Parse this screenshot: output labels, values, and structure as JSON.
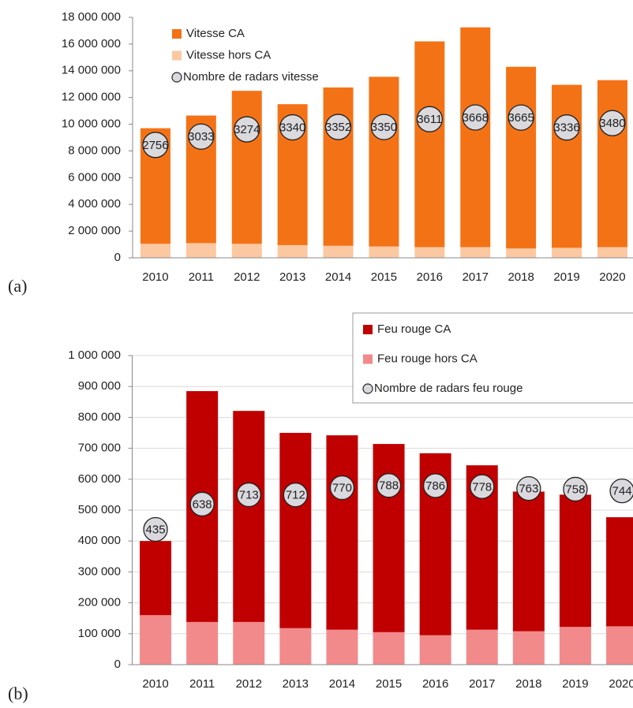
{
  "chart_data": [
    {
      "type": "bar",
      "stacked": true,
      "panel_label": "(a)",
      "categories": [
        "2010",
        "2011",
        "2012",
        "2013",
        "2014",
        "2015",
        "2016",
        "2017",
        "2018",
        "2019",
        "2020"
      ],
      "series": [
        {
          "name": "Vitesse CA",
          "color": "#f47216",
          "values": [
            8650000,
            9550000,
            11450000,
            10550000,
            11850000,
            12700000,
            15400000,
            16450000,
            13600000,
            12200000,
            12500000
          ]
        },
        {
          "name": "Vitesse hors CA",
          "color": "#fbc8a2",
          "values": [
            1050000,
            1100000,
            1050000,
            950000,
            900000,
            850000,
            800000,
            800000,
            700000,
            750000,
            800000
          ]
        },
        {
          "name": "Nombre de radars vitesse",
          "type": "scatter",
          "axis": "y2",
          "color": "#d9d9de",
          "values": [
            2756,
            3033,
            3274,
            3340,
            3352,
            3350,
            3611,
            3668,
            3665,
            3336,
            3480
          ]
        }
      ],
      "ylim": [
        0,
        18000000
      ],
      "yticks": [
        0,
        {
          "value": 2000000,
          "label": "2 000 000"
        },
        {
          "value": 4000000,
          "label": "4 000 000"
        },
        {
          "value": 6000000,
          "label": "6 000 000"
        },
        {
          "value": 8000000,
          "label": "8 000 000"
        },
        {
          "value": 10000000,
          "label": "10 000 000"
        },
        {
          "value": 12000000,
          "label": "12 000 000"
        },
        {
          "value": 14000000,
          "label": "14 000 000"
        },
        {
          "value": 16000000,
          "label": "16 000 000"
        },
        {
          "value": 18000000,
          "label": "18 000 000"
        }
      ],
      "y2lim": [
        -1000,
        7000
      ],
      "grid": false,
      "legend": "top-left"
    },
    {
      "type": "bar",
      "stacked": true,
      "panel_label": "(b)",
      "categories": [
        "2010",
        "2011",
        "2012",
        "2013",
        "2014",
        "2015",
        "2016",
        "2017",
        "2018",
        "2019",
        "2020"
      ],
      "series": [
        {
          "name": "Feu rouge CA",
          "color": "#c00000",
          "values": [
            240000,
            747000,
            683000,
            632000,
            629000,
            609000,
            589000,
            532000,
            452000,
            428000,
            353000
          ]
        },
        {
          "name": "Feu rouge hors CA",
          "color": "#f28a8c",
          "values": [
            160000,
            138000,
            138000,
            118000,
            113000,
            105000,
            95000,
            113000,
            108000,
            122000,
            124000
          ]
        },
        {
          "name": "Nombre de radars feu rouge",
          "type": "scatter",
          "axis": "y2",
          "color": "#d9d9de",
          "values": [
            435,
            638,
            713,
            712,
            770,
            788,
            786,
            778,
            763,
            758,
            744
          ]
        }
      ],
      "ylim": [
        0,
        1000000
      ],
      "yticks": [
        0,
        {
          "value": 100000,
          "label": "100 000"
        },
        {
          "value": 200000,
          "label": "200 000"
        },
        {
          "value": 300000,
          "label": "300 000"
        },
        {
          "value": 400000,
          "label": "400 000"
        },
        {
          "value": 500000,
          "label": "500 000"
        },
        {
          "value": 600000,
          "label": "600 000"
        },
        {
          "value": 700000,
          "label": "700 000"
        },
        {
          "value": 800000,
          "label": "800 000"
        },
        {
          "value": 900000,
          "label": "900 000"
        },
        {
          "value": 1000000,
          "label": "1 000 000"
        }
      ],
      "y2lim": [
        -650,
        1830
      ],
      "grid": true,
      "legend": "top-right"
    }
  ]
}
